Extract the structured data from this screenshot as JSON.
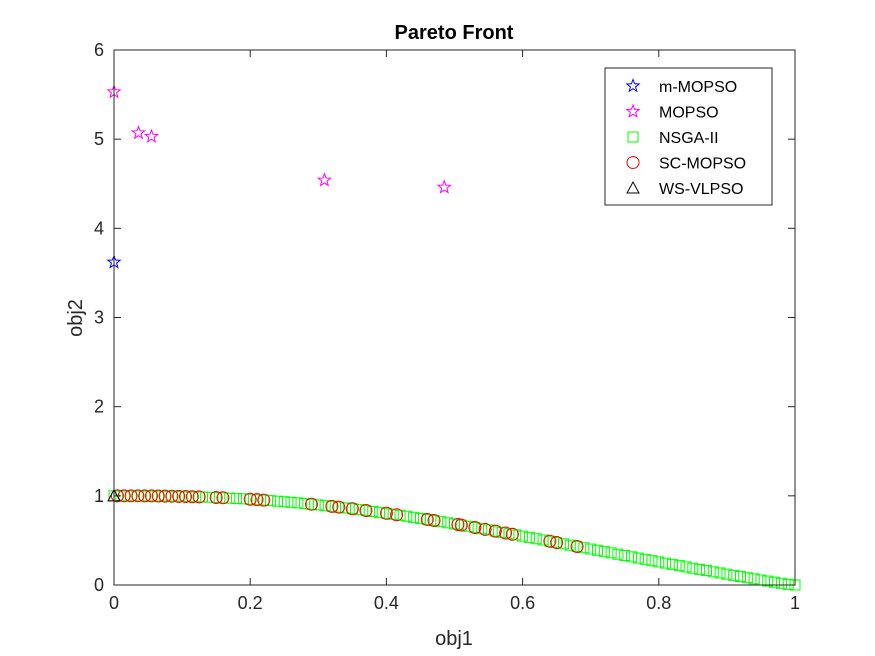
{
  "chart_data": {
    "type": "scatter",
    "title": "Pareto Front",
    "xlabel": "obj1",
    "ylabel": "obj2",
    "xlim": [
      0,
      1
    ],
    "ylim": [
      0,
      6
    ],
    "xticks": [
      "0",
      "0.2",
      "0.4",
      "0.6",
      "0.8",
      "1"
    ],
    "yticks": [
      "0",
      "1",
      "2",
      "3",
      "4",
      "5",
      "6"
    ],
    "xtick_values": [
      0,
      0.2,
      0.4,
      0.6,
      0.8,
      1
    ],
    "ytick_values": [
      0,
      1,
      2,
      3,
      4,
      5,
      6
    ],
    "grid": false,
    "legend_position": "top-right",
    "series": [
      {
        "name": "NSGA-II",
        "marker": "square",
        "color": "#00ff00",
        "points": [
          [
            0.0,
            1.0
          ],
          [
            0.01,
            1.0
          ],
          [
            0.02,
            1.0
          ],
          [
            0.03,
            1.0
          ],
          [
            0.04,
            0.999
          ],
          [
            0.05,
            0.999
          ],
          [
            0.06,
            0.998
          ],
          [
            0.07,
            0.997
          ],
          [
            0.08,
            0.996
          ],
          [
            0.09,
            0.995
          ],
          [
            0.1,
            0.993
          ],
          [
            0.11,
            0.991
          ],
          [
            0.12,
            0.989
          ],
          [
            0.13,
            0.987
          ],
          [
            0.14,
            0.984
          ],
          [
            0.15,
            0.981
          ],
          [
            0.16,
            0.978
          ],
          [
            0.17,
            0.974
          ],
          [
            0.18,
            0.97
          ],
          [
            0.19,
            0.966
          ],
          [
            0.2,
            0.962
          ],
          [
            0.21,
            0.957
          ],
          [
            0.22,
            0.952
          ],
          [
            0.23,
            0.946
          ],
          [
            0.24,
            0.94
          ],
          [
            0.25,
            0.934
          ],
          [
            0.26,
            0.927
          ],
          [
            0.27,
            0.921
          ],
          [
            0.28,
            0.913
          ],
          [
            0.29,
            0.906
          ],
          [
            0.3,
            0.898
          ],
          [
            0.31,
            0.89
          ],
          [
            0.32,
            0.882
          ],
          [
            0.33,
            0.873
          ],
          [
            0.34,
            0.864
          ],
          [
            0.35,
            0.855
          ],
          [
            0.36,
            0.845
          ],
          [
            0.37,
            0.835
          ],
          [
            0.38,
            0.825
          ],
          [
            0.39,
            0.815
          ],
          [
            0.4,
            0.804
          ],
          [
            0.41,
            0.793
          ],
          [
            0.42,
            0.782
          ],
          [
            0.43,
            0.771
          ],
          [
            0.44,
            0.759
          ],
          [
            0.45,
            0.747
          ],
          [
            0.46,
            0.735
          ],
          [
            0.47,
            0.723
          ],
          [
            0.48,
            0.71
          ],
          [
            0.49,
            0.697
          ],
          [
            0.5,
            0.685
          ],
          [
            0.51,
            0.672
          ],
          [
            0.52,
            0.658
          ],
          [
            0.53,
            0.645
          ],
          [
            0.54,
            0.631
          ],
          [
            0.55,
            0.618
          ],
          [
            0.56,
            0.604
          ],
          [
            0.57,
            0.59
          ],
          [
            0.58,
            0.576
          ],
          [
            0.59,
            0.562
          ],
          [
            0.6,
            0.548
          ],
          [
            0.61,
            0.534
          ],
          [
            0.62,
            0.519
          ],
          [
            0.63,
            0.505
          ],
          [
            0.64,
            0.491
          ],
          [
            0.65,
            0.476
          ],
          [
            0.66,
            0.462
          ],
          [
            0.67,
            0.447
          ],
          [
            0.68,
            0.432
          ],
          [
            0.69,
            0.418
          ],
          [
            0.7,
            0.403
          ],
          [
            0.71,
            0.389
          ],
          [
            0.72,
            0.374
          ],
          [
            0.73,
            0.36
          ],
          [
            0.74,
            0.345
          ],
          [
            0.75,
            0.331
          ],
          [
            0.76,
            0.316
          ],
          [
            0.77,
            0.302
          ],
          [
            0.78,
            0.288
          ],
          [
            0.79,
            0.273
          ],
          [
            0.8,
            0.259
          ],
          [
            0.81,
            0.245
          ],
          [
            0.82,
            0.231
          ],
          [
            0.83,
            0.217
          ],
          [
            0.84,
            0.203
          ],
          [
            0.85,
            0.189
          ],
          [
            0.86,
            0.175
          ],
          [
            0.87,
            0.162
          ],
          [
            0.88,
            0.148
          ],
          [
            0.89,
            0.135
          ],
          [
            0.9,
            0.121
          ],
          [
            0.91,
            0.108
          ],
          [
            0.92,
            0.095
          ],
          [
            0.93,
            0.082
          ],
          [
            0.94,
            0.069
          ],
          [
            0.95,
            0.056
          ],
          [
            0.96,
            0.044
          ],
          [
            0.97,
            0.031
          ],
          [
            0.98,
            0.019
          ],
          [
            0.99,
            0.007
          ],
          [
            1.0,
            0.0
          ]
        ]
      },
      {
        "name": "SC-MOPSO",
        "marker": "circle",
        "color": "#ff0000",
        "points": [
          [
            0.005,
            1.0
          ],
          [
            0.015,
            1.0
          ],
          [
            0.025,
            1.0
          ],
          [
            0.035,
            1.0
          ],
          [
            0.045,
            0.999
          ],
          [
            0.055,
            0.999
          ],
          [
            0.065,
            0.998
          ],
          [
            0.075,
            0.997
          ],
          [
            0.085,
            0.996
          ],
          [
            0.095,
            0.994
          ],
          [
            0.105,
            0.992
          ],
          [
            0.115,
            0.99
          ],
          [
            0.125,
            0.988
          ],
          [
            0.15,
            0.981
          ],
          [
            0.16,
            0.978
          ],
          [
            0.2,
            0.962
          ],
          [
            0.21,
            0.957
          ],
          [
            0.22,
            0.952
          ],
          [
            0.29,
            0.906
          ],
          [
            0.32,
            0.882
          ],
          [
            0.33,
            0.873
          ],
          [
            0.35,
            0.855
          ],
          [
            0.37,
            0.835
          ],
          [
            0.4,
            0.804
          ],
          [
            0.415,
            0.788
          ],
          [
            0.46,
            0.735
          ],
          [
            0.47,
            0.723
          ],
          [
            0.505,
            0.678
          ],
          [
            0.51,
            0.672
          ],
          [
            0.53,
            0.645
          ],
          [
            0.545,
            0.624
          ],
          [
            0.56,
            0.604
          ],
          [
            0.575,
            0.583
          ],
          [
            0.585,
            0.569
          ],
          [
            0.64,
            0.491
          ],
          [
            0.65,
            0.476
          ],
          [
            0.68,
            0.432
          ]
        ]
      },
      {
        "name": "m-MOPSO",
        "marker": "star",
        "color": "#0000ff",
        "points": [
          [
            0.0,
            3.62
          ]
        ]
      },
      {
        "name": "MOPSO",
        "marker": "star",
        "color": "#ff00ff",
        "points": [
          [
            0.0,
            5.53
          ],
          [
            0.036,
            5.07
          ],
          [
            0.055,
            5.03
          ],
          [
            0.309,
            4.54
          ],
          [
            0.485,
            4.46
          ]
        ]
      },
      {
        "name": "WS-VLPSO",
        "marker": "triangle",
        "color": "#000000",
        "points": [
          [
            0.0,
            1.0
          ]
        ]
      }
    ],
    "legend_order": [
      "m-MOPSO",
      "MOPSO",
      "NSGA-II",
      "SC-MOPSO",
      "WS-VLPSO"
    ]
  }
}
